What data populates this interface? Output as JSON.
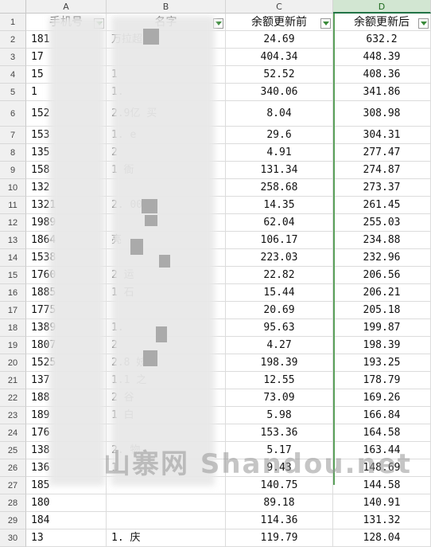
{
  "columns": [
    "A",
    "B",
    "C",
    "D"
  ],
  "headers": {
    "a": "手机号",
    "b": "名字",
    "c": "余额更新前",
    "d": "余额更新后"
  },
  "rows": [
    {
      "n": "2",
      "a": "181",
      "b": "万拉超",
      "c": "24.69",
      "d": "632.2"
    },
    {
      "n": "3",
      "a": "17",
      "b": "",
      "c": "404.34",
      "d": "448.39"
    },
    {
      "n": "4",
      "a": "15",
      "b": "1",
      "c": "52.52",
      "d": "408.36"
    },
    {
      "n": "5",
      "a": "1",
      "b": "1.",
      "c": "340.06",
      "d": "341.86"
    },
    {
      "n": "6",
      "a": "152",
      "b": "2.9亿 买",
      "c": "8.04",
      "d": "308.98"
    },
    {
      "n": "7",
      "a": "153",
      "b": "1. e",
      "c": "29.6",
      "d": "304.31"
    },
    {
      "n": "8",
      "a": "135",
      "b": "2",
      "c": "4.91",
      "d": "277.47"
    },
    {
      "n": "9",
      "a": "158",
      "b": "1 衙",
      "c": "131.34",
      "d": "274.87"
    },
    {
      "n": "10",
      "a": "132",
      "b": "",
      "c": "258.68",
      "d": "273.37"
    },
    {
      "n": "11",
      "a": "1321",
      "b": "2. 001",
      "c": "14.35",
      "d": "261.45"
    },
    {
      "n": "12",
      "a": "1989",
      "b": "",
      "c": "62.04",
      "d": "255.03"
    },
    {
      "n": "13",
      "a": "1864",
      "b": "亮",
      "c": "106.17",
      "d": "234.88"
    },
    {
      "n": "14",
      "a": "1538",
      "b": "",
      "c": "223.03",
      "d": "232.96"
    },
    {
      "n": "15",
      "a": "1760",
      "b": "2 运",
      "c": "22.82",
      "d": "206.56"
    },
    {
      "n": "16",
      "a": "1885",
      "b": "1 石",
      "c": "15.44",
      "d": "206.21"
    },
    {
      "n": "17",
      "a": "1775",
      "b": "",
      "c": "20.69",
      "d": "205.18"
    },
    {
      "n": "18",
      "a": "1389",
      "b": "1.",
      "c": "95.63",
      "d": "199.87"
    },
    {
      "n": "19",
      "a": "1807",
      "b": "2",
      "c": "4.27",
      "d": "198.39"
    },
    {
      "n": "20",
      "a": "1525",
      "b": "2.8 妓",
      "c": "198.39",
      "d": "193.25"
    },
    {
      "n": "21",
      "a": "137",
      "b": "1.1 之",
      "c": "12.55",
      "d": "178.79"
    },
    {
      "n": "22",
      "a": "188",
      "b": "2 谷",
      "c": "73.09",
      "d": "169.26"
    },
    {
      "n": "23",
      "a": "189",
      "b": "1 白",
      "c": "5.98",
      "d": "166.84"
    },
    {
      "n": "24",
      "a": "176",
      "b": "",
      "c": "153.36",
      "d": "164.58"
    },
    {
      "n": "25",
      "a": "138",
      "b": "2. 物",
      "c": "5.17",
      "d": "163.44"
    },
    {
      "n": "26",
      "a": "136",
      "b": "1",
      "c": "9.43",
      "d": "148.69"
    },
    {
      "n": "27",
      "a": "185",
      "b": "",
      "c": "140.75",
      "d": "144.58"
    },
    {
      "n": "28",
      "a": "180",
      "b": "",
      "c": "89.18",
      "d": "140.91"
    },
    {
      "n": "29",
      "a": "184",
      "b": "",
      "c": "114.36",
      "d": "131.32"
    },
    {
      "n": "30",
      "a": "13",
      "b": "1. 庆",
      "c": "119.79",
      "d": "128.04"
    }
  ],
  "watermark": "山寨网 Shandou.net"
}
